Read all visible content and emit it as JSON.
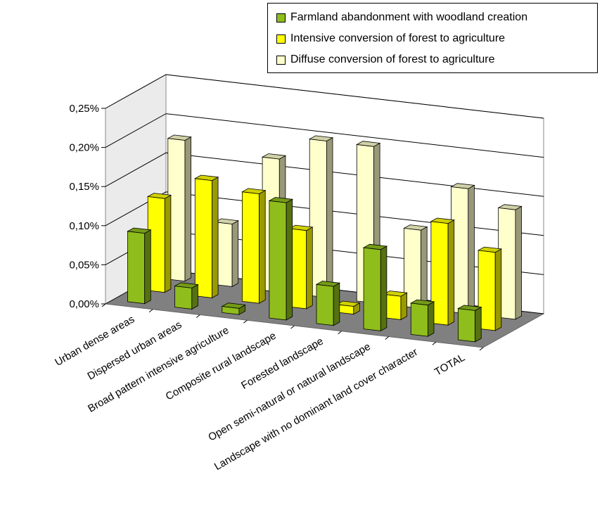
{
  "chart_data": {
    "type": "bar",
    "variant": "3d-clustered-column",
    "categories": [
      "Urban dense areas",
      "Dispersed urban areas",
      "Broad pattern intensive agriculture",
      "Composite rural landscape",
      "Forested landscape",
      "Open semi-natural or natural landscape",
      "Landscape with no dominant land cover character",
      "TOTAL"
    ],
    "series": [
      {
        "name": "Farmland abandonment with woodland creation",
        "color": "#8fbd1c",
        "values": [
          0.09,
          0.027,
          0.008,
          0.15,
          0.05,
          0.104,
          0.04,
          0.04
        ]
      },
      {
        "name": "Intensive conversion of forest to agriculture",
        "color": "#ffff00",
        "values": [
          0.12,
          0.15,
          0.14,
          0.1,
          0.01,
          0.03,
          0.13,
          0.1
        ]
      },
      {
        "name": "Diffuse conversion of forest to agriculture",
        "color": "#ffffcc",
        "values": [
          0.18,
          0.08,
          0.17,
          0.2,
          0.2,
          0.1,
          0.16,
          0.14
        ]
      }
    ],
    "ylim": [
      0,
      0.25
    ],
    "yticks": [
      "0,00%",
      "0,05%",
      "0,10%",
      "0,15%",
      "0,20%",
      "0,25%"
    ],
    "grid": true,
    "legend": "top-right"
  }
}
